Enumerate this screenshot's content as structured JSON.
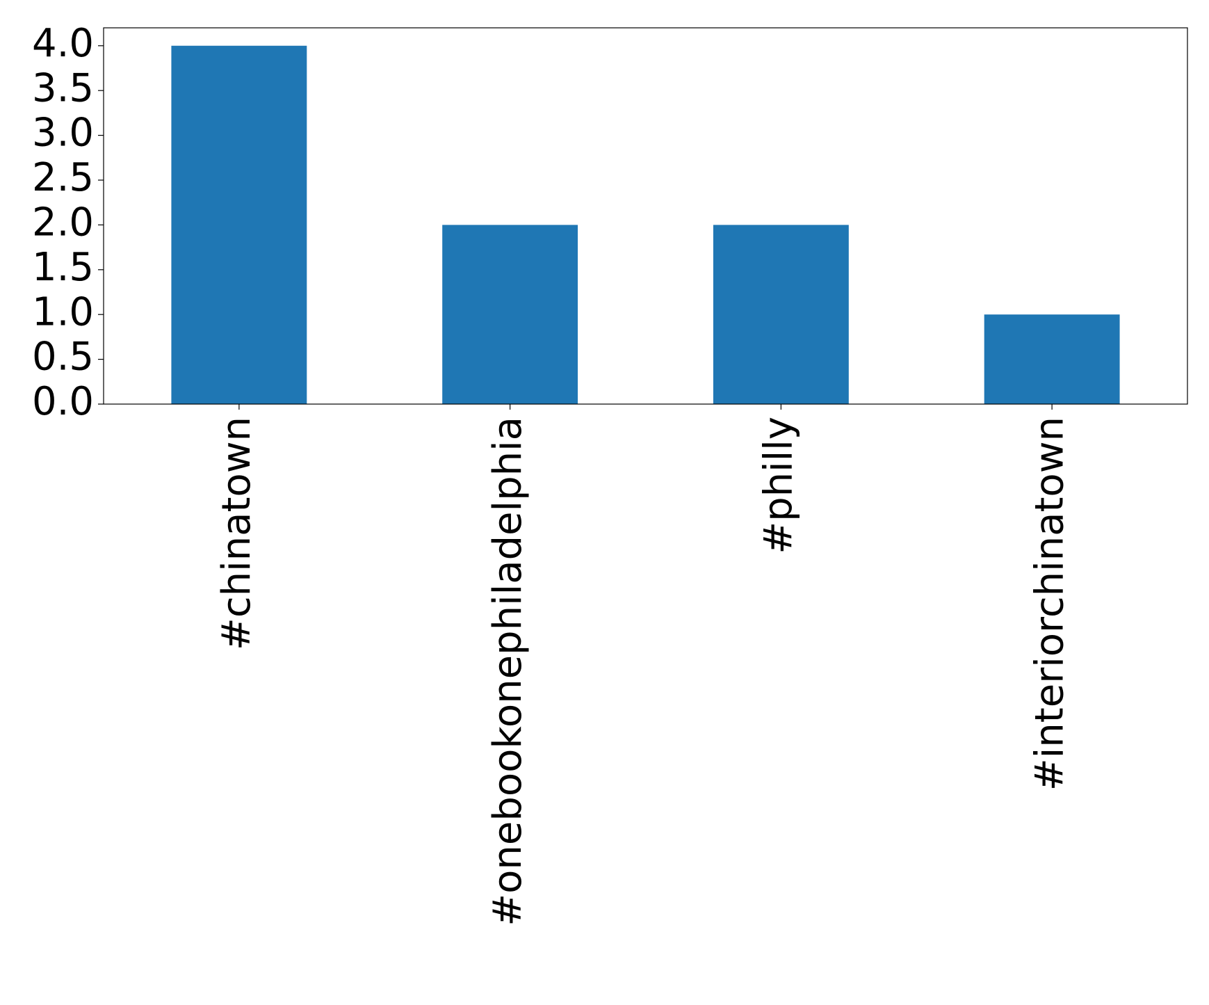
{
  "chart_data": {
    "type": "bar",
    "categories": [
      "#chinatown",
      "#onebookonephiladelphia",
      "#philly",
      "#interiorchinatown"
    ],
    "values": [
      4,
      2,
      2,
      1
    ],
    "color": "#1f77b4",
    "ylim": [
      0,
      4.2
    ],
    "yticks": [
      {
        "value": 0,
        "label": "0.0"
      },
      {
        "value": 0.5,
        "label": "0.5"
      },
      {
        "value": 1,
        "label": "1.0"
      },
      {
        "value": 1.5,
        "label": "1.5"
      },
      {
        "value": 2,
        "label": "2.0"
      },
      {
        "value": 2.5,
        "label": "2.5"
      },
      {
        "value": 3,
        "label": "3.0"
      },
      {
        "value": 3.5,
        "label": "3.5"
      },
      {
        "value": 4,
        "label": "4.0"
      }
    ],
    "grid": false
  }
}
